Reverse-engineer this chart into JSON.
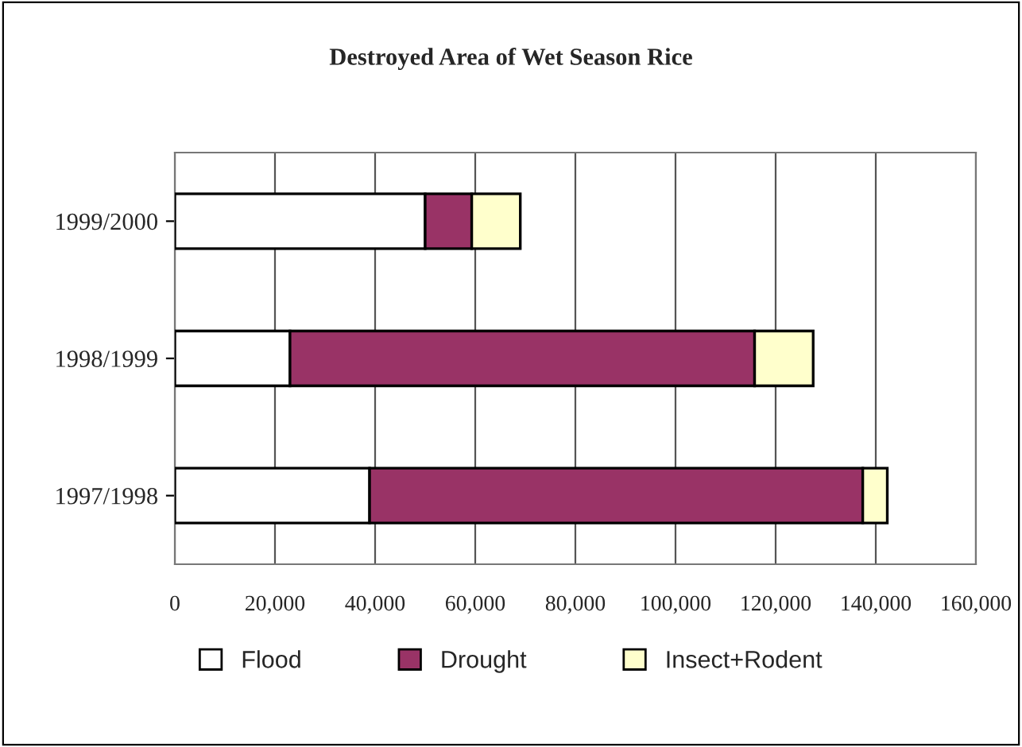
{
  "chart_data": {
    "type": "bar",
    "orientation": "horizontal",
    "stacked": true,
    "title": "Destroyed Area of Wet Season Rice",
    "categories": [
      "1999/2000",
      "1998/1999",
      "1997/1998"
    ],
    "series": [
      {
        "name": "Flood",
        "color": "#ffffff",
        "values": [
          50000,
          23000,
          38900
        ]
      },
      {
        "name": "Drought",
        "color": "#993366",
        "values": [
          9300,
          92800,
          98500
        ]
      },
      {
        "name": "Insect+Rodent",
        "color": "#ffffcc",
        "values": [
          9700,
          11700,
          4900
        ]
      }
    ],
    "xlim": [
      0,
      160000
    ],
    "xticks": [
      {
        "value": 0,
        "label": "0"
      },
      {
        "value": 20000,
        "label": "20,000"
      },
      {
        "value": 40000,
        "label": "40,000"
      },
      {
        "value": 60000,
        "label": "60,000"
      },
      {
        "value": 80000,
        "label": "80,000"
      },
      {
        "value": 100000,
        "label": "100,000"
      },
      {
        "value": 120000,
        "label": "120,000"
      },
      {
        "value": 140000,
        "label": "140,000"
      },
      {
        "value": 160000,
        "label": "160,000"
      }
    ],
    "grid": "x",
    "legend": "bottom"
  }
}
